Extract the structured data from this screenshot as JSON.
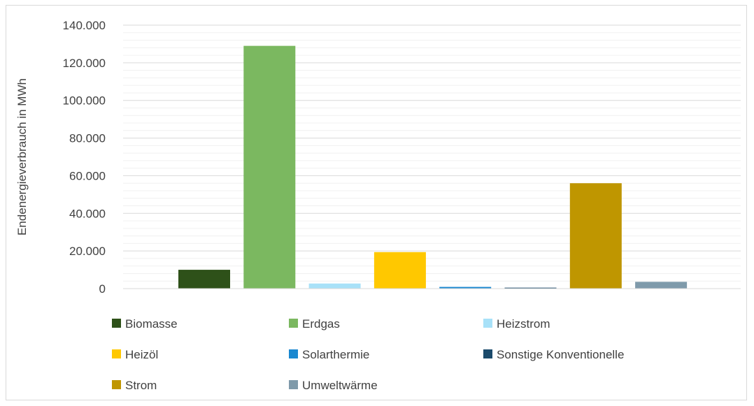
{
  "chart_data": {
    "type": "bar",
    "ylabel": "Endenergieverbrauch in MWh",
    "xlabel": "",
    "ylim": [
      0,
      140000
    ],
    "major_ticks": [
      0,
      20000,
      40000,
      60000,
      80000,
      100000,
      120000,
      140000
    ],
    "tick_labels": [
      "0",
      "20.000",
      "40.000",
      "60.000",
      "80.000",
      "100.000",
      "120.000",
      "140.000"
    ],
    "minor_grid_step": 4000,
    "legend_position": "bottom",
    "series": [
      {
        "name": "Biomasse",
        "value": 10000,
        "color": "#2e5119"
      },
      {
        "name": "Erdgas",
        "value": 129000,
        "color": "#7bb860"
      },
      {
        "name": "Heizstrom",
        "value": 2700,
        "color": "#a8e1f8"
      },
      {
        "name": "Heizöl",
        "value": 19400,
        "color": "#ffc800"
      },
      {
        "name": "Solarthermie",
        "value": 900,
        "color": "#1a88d0"
      },
      {
        "name": "Sonstige Konventionelle",
        "value": 500,
        "color": "#1b4a6b"
      },
      {
        "name": "Strom",
        "value": 56000,
        "color": "#bf9600"
      },
      {
        "name": "Umweltwärme",
        "value": 3600,
        "color": "#7f9aaa"
      }
    ]
  }
}
